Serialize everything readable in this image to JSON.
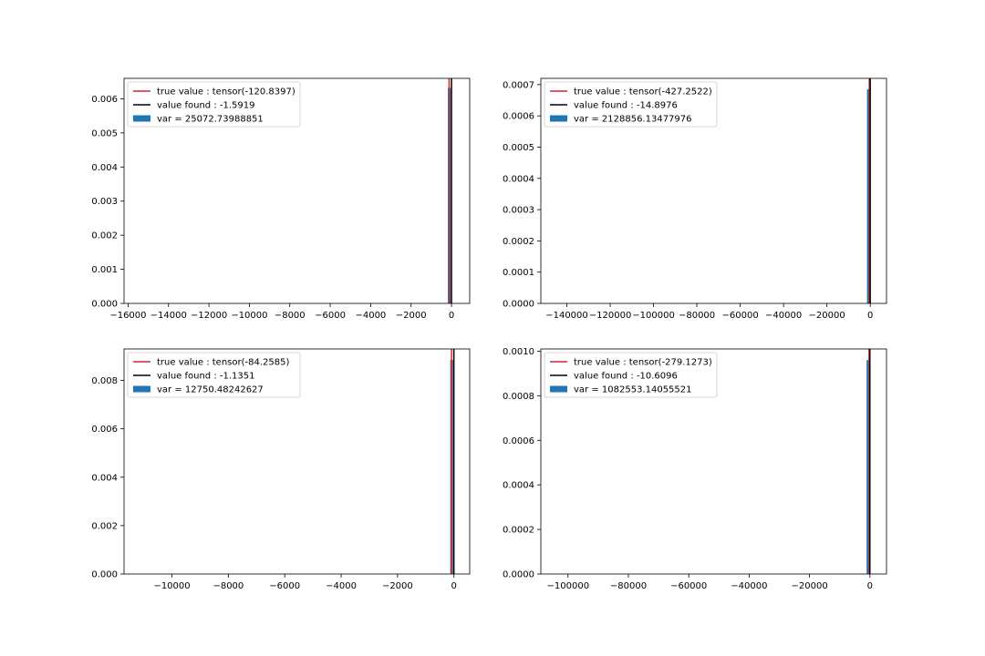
{
  "chart_data": [
    {
      "type": "histogram",
      "xlim": [
        -16200,
        900
      ],
      "ylim": [
        0,
        0.0066
      ],
      "xticks": [
        -16000,
        -14000,
        -12000,
        -10000,
        -8000,
        -6000,
        -4000,
        -2000,
        0
      ],
      "xtick_labels": [
        "−16000",
        "−14000",
        "−12000",
        "−10000",
        "−8000",
        "−6000",
        "−4000",
        "−2000",
        "0"
      ],
      "yticks": [
        0.0,
        0.001,
        0.002,
        0.003,
        0.004,
        0.005,
        0.006
      ],
      "ytick_labels": [
        "0.000",
        "0.001",
        "0.002",
        "0.003",
        "0.004",
        "0.005",
        "0.006"
      ],
      "hist_bars": [
        {
          "x0": -180,
          "x1": -40,
          "height": 0.00632
        }
      ],
      "true_value": -120.8397,
      "value_found": -1.5919,
      "legend": {
        "placement": "upper-left",
        "true_label": "true value : tensor(-120.8397)",
        "found_label": "value found : -1.5919",
        "var_label": "var = 25072.73988851"
      },
      "colors": {
        "true": "#d62728",
        "found": "#000000",
        "hist": "#1f77b4"
      }
    },
    {
      "type": "histogram",
      "xlim": [
        -152000,
        7500
      ],
      "ylim": [
        0,
        0.00072
      ],
      "xticks": [
        -140000,
        -120000,
        -100000,
        -80000,
        -60000,
        -40000,
        -20000,
        0
      ],
      "xtick_labels": [
        "−140000",
        "−120000",
        "−100000",
        "−80000",
        "−60000",
        "−40000",
        "−20000",
        "0"
      ],
      "yticks": [
        0.0,
        0.0001,
        0.0002,
        0.0003,
        0.0004,
        0.0005,
        0.0006,
        0.0007
      ],
      "ytick_labels": [
        "0.0000",
        "0.0001",
        "0.0002",
        "0.0003",
        "0.0004",
        "0.0005",
        "0.0006",
        "0.0007"
      ],
      "hist_bars": [
        {
          "x0": -1500,
          "x1": -300,
          "height": 0.000685
        }
      ],
      "true_value": -427.2522,
      "value_found": -14.8976,
      "legend": {
        "placement": "upper-left",
        "true_label": "true value : tensor(-427.2522)",
        "found_label": "value found : -14.8976",
        "var_label": "var = 2128856.13477976"
      },
      "colors": {
        "true": "#d62728",
        "found": "#000000",
        "hist": "#1f77b4"
      }
    },
    {
      "type": "histogram",
      "xlim": [
        -11700,
        560
      ],
      "ylim": [
        0,
        0.0093
      ],
      "xticks": [
        -10000,
        -8000,
        -6000,
        -4000,
        -2000,
        0
      ],
      "xtick_labels": [
        "−10000",
        "−8000",
        "−6000",
        "−4000",
        "−2000",
        "0"
      ],
      "yticks": [
        0.0,
        0.002,
        0.004,
        0.006,
        0.008
      ],
      "ytick_labels": [
        "0.000",
        "0.002",
        "0.004",
        "0.006",
        "0.008"
      ],
      "hist_bars": [
        {
          "x0": -130,
          "x1": -30,
          "height": 0.00885
        }
      ],
      "true_value": -84.2585,
      "value_found": -1.1351,
      "legend": {
        "placement": "upper-left",
        "true_label": "true value : tensor(-84.2585)",
        "found_label": "value found : -1.1351",
        "var_label": "var = 12750.48242627"
      },
      "colors": {
        "true": "#d62728",
        "found": "#000000",
        "hist": "#1f77b4"
      }
    },
    {
      "type": "histogram",
      "xlim": [
        -109000,
        5500
      ],
      "ylim": [
        0,
        0.00101
      ],
      "xticks": [
        -100000,
        -80000,
        -60000,
        -40000,
        -20000,
        0
      ],
      "xtick_labels": [
        "−100000",
        "−80000",
        "−60000",
        "−40000",
        "−20000",
        "0"
      ],
      "yticks": [
        0.0,
        0.0002,
        0.0004,
        0.0006,
        0.0008,
        0.001
      ],
      "ytick_labels": [
        "0.0000",
        "0.0002",
        "0.0004",
        "0.0006",
        "0.0008",
        "0.0010"
      ],
      "hist_bars": [
        {
          "x0": -1100,
          "x1": -200,
          "height": 0.00096
        }
      ],
      "true_value": -279.1273,
      "value_found": -10.6096,
      "legend": {
        "placement": "upper-left",
        "true_label": "true value : tensor(-279.1273)",
        "found_label": "value found : -10.6096",
        "var_label": "var = 1082553.14055521"
      },
      "colors": {
        "true": "#d62728",
        "found": "#000000",
        "hist": "#1f77b4"
      }
    }
  ]
}
